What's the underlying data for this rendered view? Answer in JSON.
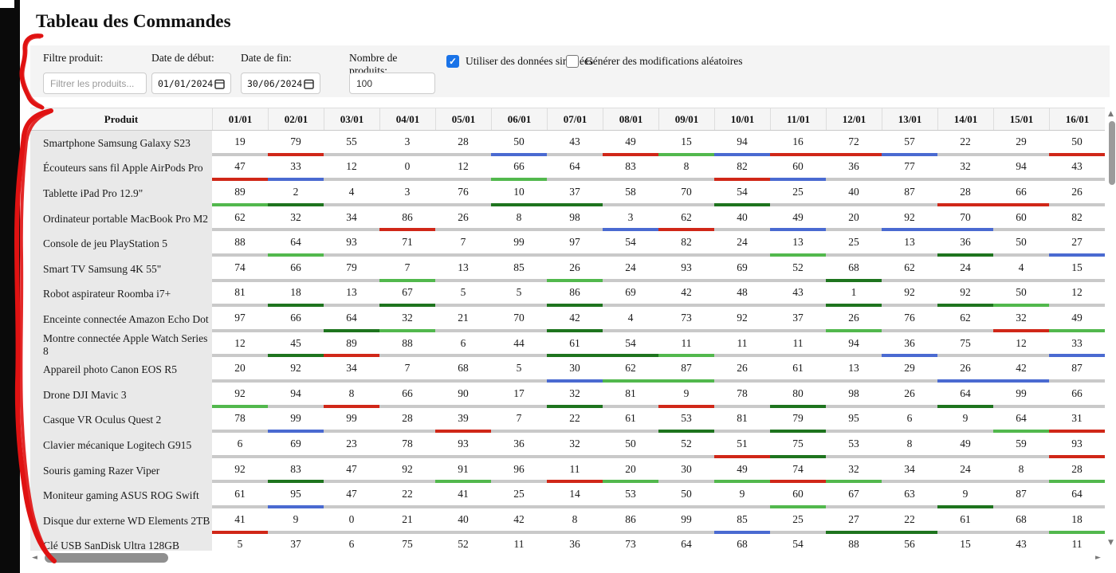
{
  "page": {
    "title": "Tableau des Commandes"
  },
  "filters": {
    "product_label": "Filtre produit:",
    "product_placeholder": "Filtrer les produits...",
    "date_start_label": "Date de début:",
    "date_start_value": "01/01/2024",
    "date_end_label": "Date de fin:",
    "date_end_value": "30/06/2024",
    "count_label": "Nombre de produits:",
    "count_value": "100",
    "checkbox_simulated": {
      "label": "Utiliser des données simulées",
      "checked": true
    },
    "checkbox_random": {
      "label": "Générer des modifications aléatoires",
      "checked": false
    }
  },
  "icons": {
    "check": "✓",
    "up": "▲",
    "down": "▼",
    "left": "◄",
    "right": "►"
  },
  "colors": {
    "bars": {
      "gray": "#c9c9c9",
      "red": "#d02718",
      "green": "#52b84d",
      "dgreen": "#1e741e",
      "blue": "#4a6ad1"
    },
    "annotation_red": "#e01212",
    "checkbox_blue": "#1a73e8"
  },
  "table": {
    "product_header": "Produit",
    "date_headers": [
      "01/01",
      "02/01",
      "03/01",
      "04/01",
      "05/01",
      "06/01",
      "07/01",
      "08/01",
      "09/01",
      "10/01",
      "11/01",
      "12/01",
      "13/01",
      "14/01",
      "15/01",
      "16/01"
    ],
    "rows": [
      {
        "product": "Smartphone Samsung Galaxy S23",
        "values": [
          19,
          79,
          55,
          3,
          28,
          50,
          43,
          49,
          15,
          94,
          16,
          72,
          57,
          22,
          29,
          50
        ],
        "colors": [
          "",
          "red",
          "",
          "",
          "",
          "blue",
          "",
          "red",
          "green",
          "blue",
          "red",
          "red",
          "blue",
          "",
          "",
          "red"
        ]
      },
      {
        "product": "Écouteurs sans fil Apple AirPods Pro",
        "values": [
          47,
          33,
          12,
          0,
          12,
          66,
          64,
          83,
          8,
          82,
          60,
          36,
          77,
          32,
          94,
          43
        ],
        "colors": [
          "red",
          "blue",
          "",
          "",
          "",
          "green",
          "",
          "",
          "",
          "red",
          "blue",
          "",
          "",
          "",
          "",
          ""
        ]
      },
      {
        "product": "Tablette iPad Pro 12.9\"",
        "values": [
          89,
          2,
          4,
          3,
          76,
          10,
          37,
          58,
          70,
          54,
          25,
          40,
          87,
          28,
          66,
          26
        ],
        "colors": [
          "green",
          "dgreen",
          "",
          "",
          "",
          "dgreen",
          "dgreen",
          "",
          "",
          "dgreen",
          "",
          "",
          "",
          "red",
          "red",
          ""
        ]
      },
      {
        "product": "Ordinateur portable MacBook Pro M2",
        "values": [
          62,
          32,
          34,
          86,
          26,
          8,
          98,
          3,
          62,
          40,
          49,
          20,
          92,
          70,
          60,
          82
        ],
        "colors": [
          "",
          "",
          "",
          "red",
          "",
          "",
          "",
          "blue",
          "red",
          "",
          "blue",
          "",
          "blue",
          "blue",
          "",
          ""
        ]
      },
      {
        "product": "Console de jeu PlayStation 5",
        "values": [
          88,
          64,
          93,
          71,
          7,
          99,
          97,
          54,
          82,
          24,
          13,
          25,
          13,
          36,
          50,
          27
        ],
        "colors": [
          "",
          "green",
          "",
          "",
          "",
          "",
          "",
          "",
          "",
          "",
          "green",
          "",
          "",
          "dgreen",
          "",
          "blue"
        ]
      },
      {
        "product": "Smart TV Samsung 4K 55\"",
        "values": [
          74,
          66,
          79,
          7,
          13,
          85,
          26,
          24,
          93,
          69,
          52,
          68,
          62,
          24,
          4,
          15
        ],
        "colors": [
          "",
          "",
          "",
          "green",
          "",
          "",
          "green",
          "",
          "",
          "",
          "",
          "dgreen",
          "",
          "",
          "",
          ""
        ]
      },
      {
        "product": "Robot aspirateur Roomba i7+",
        "values": [
          81,
          18,
          13,
          67,
          5,
          5,
          86,
          69,
          42,
          48,
          43,
          1,
          92,
          92,
          50,
          12
        ],
        "colors": [
          "",
          "dgreen",
          "",
          "dgreen",
          "",
          "",
          "dgreen",
          "",
          "",
          "",
          "",
          "dgreen",
          "",
          "dgreen",
          "green",
          ""
        ]
      },
      {
        "product": "Enceinte connectée Amazon Echo Dot",
        "values": [
          97,
          66,
          64,
          32,
          21,
          70,
          42,
          4,
          73,
          92,
          37,
          26,
          76,
          62,
          32,
          49
        ],
        "colors": [
          "",
          "",
          "dgreen",
          "green",
          "",
          "",
          "dgreen",
          "",
          "",
          "",
          "",
          "green",
          "",
          "",
          "red",
          "green"
        ]
      },
      {
        "product": "Montre connectée Apple Watch Series 8",
        "values": [
          12,
          45,
          89,
          88,
          6,
          44,
          61,
          54,
          11,
          11,
          11,
          94,
          36,
          75,
          12,
          33
        ],
        "colors": [
          "",
          "dgreen",
          "red",
          "",
          "",
          "",
          "dgreen",
          "dgreen",
          "green",
          "",
          "",
          "",
          "blue",
          "",
          "",
          "blue"
        ]
      },
      {
        "product": "Appareil photo Canon EOS R5",
        "values": [
          20,
          92,
          34,
          7,
          68,
          5,
          30,
          62,
          87,
          26,
          61,
          13,
          29,
          26,
          42,
          87
        ],
        "colors": [
          "",
          "",
          "",
          "",
          "",
          "",
          "blue",
          "green",
          "green",
          "",
          "",
          "",
          "",
          "blue",
          "blue",
          ""
        ]
      },
      {
        "product": "Drone DJI Mavic 3",
        "values": [
          92,
          94,
          8,
          66,
          90,
          17,
          32,
          81,
          9,
          78,
          80,
          98,
          26,
          64,
          99,
          66
        ],
        "colors": [
          "green",
          "",
          "red",
          "",
          "",
          "",
          "dgreen",
          "",
          "red",
          "",
          "dgreen",
          "",
          "",
          "dgreen",
          "",
          ""
        ]
      },
      {
        "product": "Casque VR Oculus Quest 2",
        "values": [
          78,
          99,
          99,
          28,
          39,
          7,
          22,
          61,
          53,
          81,
          79,
          95,
          6,
          9,
          64,
          31
        ],
        "colors": [
          "",
          "blue",
          "",
          "",
          "red",
          "",
          "",
          "",
          "dgreen",
          "",
          "dgreen",
          "",
          "",
          "",
          "green",
          "red"
        ]
      },
      {
        "product": "Clavier mécanique Logitech G915",
        "values": [
          6,
          69,
          23,
          78,
          93,
          36,
          32,
          50,
          52,
          51,
          75,
          53,
          8,
          49,
          59,
          93
        ],
        "colors": [
          "",
          "",
          "",
          "",
          "",
          "",
          "",
          "",
          "",
          "red",
          "dgreen",
          "",
          "",
          "",
          "",
          "red"
        ]
      },
      {
        "product": "Souris gaming Razer Viper",
        "values": [
          92,
          83,
          47,
          92,
          91,
          96,
          11,
          20,
          30,
          49,
          74,
          32,
          34,
          24,
          8,
          28
        ],
        "colors": [
          "",
          "dgreen",
          "",
          "",
          "green",
          "",
          "red",
          "green",
          "",
          "green",
          "red",
          "green",
          "",
          "",
          "",
          "green"
        ]
      },
      {
        "product": "Moniteur gaming ASUS ROG Swift",
        "values": [
          61,
          95,
          47,
          22,
          41,
          25,
          14,
          53,
          50,
          9,
          60,
          67,
          63,
          9,
          87,
          64
        ],
        "colors": [
          "",
          "blue",
          "",
          "",
          "",
          "",
          "",
          "",
          "",
          "",
          "green",
          "",
          "",
          "dgreen",
          "",
          ""
        ]
      },
      {
        "product": "Disque dur externe WD Elements 2TB",
        "values": [
          41,
          9,
          0,
          21,
          40,
          42,
          8,
          86,
          99,
          85,
          25,
          27,
          22,
          61,
          68,
          18
        ],
        "colors": [
          "red",
          "",
          "",
          "",
          "",
          "",
          "",
          "",
          "",
          "blue",
          "",
          "dgreen",
          "dgreen",
          "",
          "",
          "green"
        ]
      },
      {
        "product": "Clé USB SanDisk Ultra 128GB",
        "values": [
          5,
          37,
          6,
          75,
          52,
          11,
          36,
          73,
          64,
          68,
          54,
          88,
          56,
          15,
          43,
          11
        ],
        "colors": [
          "",
          "",
          "",
          "",
          "",
          "",
          "",
          "",
          "",
          "",
          "",
          "",
          "",
          "",
          "",
          ""
        ]
      }
    ]
  }
}
